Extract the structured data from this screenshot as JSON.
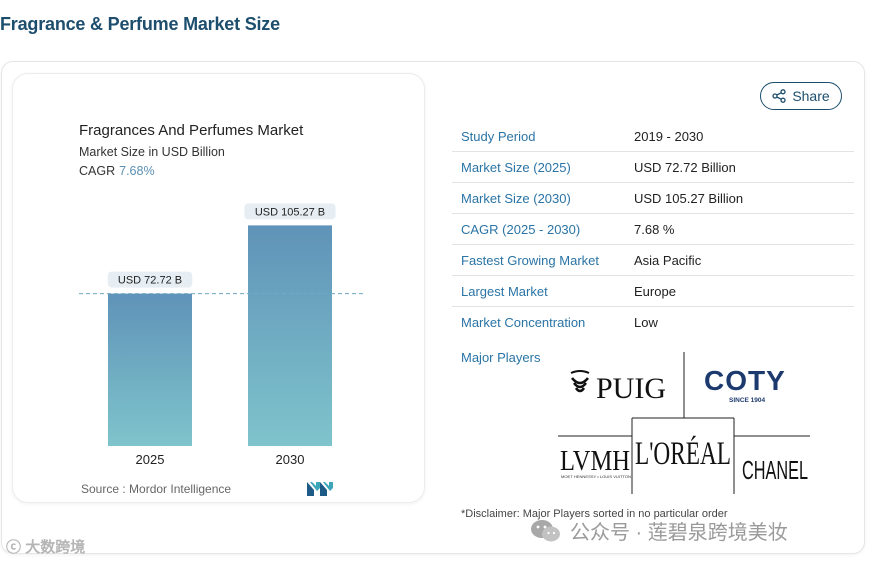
{
  "page": {
    "title": "Fragrance & Perfume Market Size"
  },
  "chart": {
    "title": "Fragrances And Perfumes Market",
    "subtitle": "Market Size in USD Billion",
    "cagr_label": "CAGR",
    "cagr_value": "7.68%",
    "source": "Source :  Mordor Intelligence",
    "bar_color_top": "#5f93b8",
    "bar_color_bottom": "#7fc4cc"
  },
  "chart_data": {
    "type": "bar",
    "categories": [
      "2025",
      "2030"
    ],
    "values": [
      72.72,
      105.27
    ],
    "data_labels": [
      "USD 72.72 B",
      "USD 105.27 B"
    ],
    "title": "Fragrances And Perfumes Market",
    "subtitle": "Market Size in USD Billion",
    "xlabel": "",
    "ylabel": "",
    "ylim": [
      0,
      115
    ],
    "reference_line_value": 72.72,
    "grid": false
  },
  "share": {
    "label": "Share",
    "icon": "share-icon"
  },
  "stats": [
    {
      "key": "Study Period",
      "value": "2019 - 2030"
    },
    {
      "key": "Market Size (2025)",
      "value": "USD 72.72 Billion"
    },
    {
      "key": "Market Size (2030)",
      "value": "USD 105.27 Billion"
    },
    {
      "key": "CAGR (2025 - 2030)",
      "value": "7.68 %"
    },
    {
      "key": "Fastest Growing Market",
      "value": "Asia Pacific"
    },
    {
      "key": "Largest Market",
      "value": "Europe"
    },
    {
      "key": "Market Concentration",
      "value": "Low"
    }
  ],
  "players": {
    "label": "Major Players",
    "logos": {
      "puig": "PUIG",
      "coty": "COTY",
      "coty_sub": "SINCE 1904",
      "lvmh": "LVMH",
      "lvmh_sub": "MOET HENNESSY • LOUIS VUITTON",
      "loreal": "L'ORÉAL",
      "chanel": "CHANEL"
    }
  },
  "disclaimer": "*Disclaimer: Major Players sorted in no particular order",
  "watermarks": {
    "wechat": "公众号 · 莲碧泉跨境美妆",
    "left": "大数跨境"
  }
}
